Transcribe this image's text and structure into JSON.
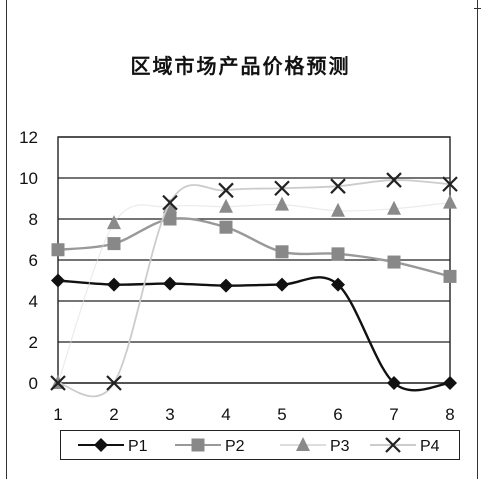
{
  "chart_data": {
    "type": "line",
    "title": "区域市场产品价格预测",
    "x": [
      1,
      2,
      3,
      4,
      5,
      6,
      7,
      8
    ],
    "ylim": [
      0,
      12
    ],
    "yticks": [
      0,
      2,
      4,
      6,
      8,
      10,
      12
    ],
    "grid": true,
    "legend_position": "bottom",
    "series": [
      {
        "name": "P1",
        "marker": "diamond",
        "color": "#111111",
        "values": [
          5.0,
          4.8,
          4.85,
          4.75,
          4.8,
          4.8,
          0,
          0
        ]
      },
      {
        "name": "P2",
        "marker": "square",
        "color": "#888888",
        "values": [
          6.5,
          6.8,
          8.0,
          7.6,
          6.4,
          6.3,
          5.9,
          5.2
        ]
      },
      {
        "name": "P3",
        "marker": "triangle",
        "color": "#8a8a8a",
        "values": [
          0,
          7.8,
          8.6,
          8.6,
          8.7,
          8.4,
          8.5,
          8.8
        ]
      },
      {
        "name": "P4",
        "marker": "x",
        "color": "#222222",
        "values": [
          0,
          0,
          8.8,
          9.4,
          9.5,
          9.6,
          9.9,
          9.7
        ]
      }
    ]
  }
}
